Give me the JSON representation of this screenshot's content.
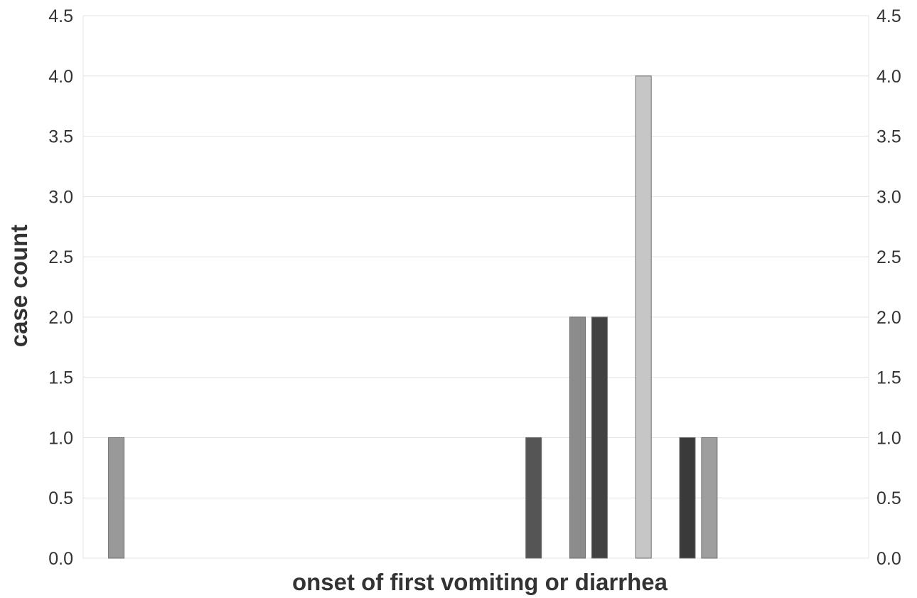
{
  "chart_data": {
    "type": "bar",
    "xlabel": "onset of first vomiting or diarrhea",
    "ylabel": "case count",
    "ylim": [
      0,
      4.5
    ],
    "y_ticks": [
      "0.0",
      "0.5",
      "1.0",
      "1.5",
      "2.0",
      "2.5",
      "3.0",
      "3.5",
      "4.0",
      "4.5"
    ],
    "y_ticks_right": true,
    "grid": true,
    "legend": "none",
    "bars": [
      {
        "slot": 2,
        "value": 1,
        "color": "#999999"
      },
      {
        "slot": 21,
        "value": 1,
        "color": "#555555"
      },
      {
        "slot": 23,
        "value": 2,
        "color": "#8c8c8c"
      },
      {
        "slot": 24,
        "value": 2,
        "color": "#424242"
      },
      {
        "slot": 26,
        "value": 4,
        "color": "#c6c6c6"
      },
      {
        "slot": 28,
        "value": 1,
        "color": "#3a3a3a"
      },
      {
        "slot": 29,
        "value": 1,
        "color": "#9e9e9e"
      }
    ]
  }
}
